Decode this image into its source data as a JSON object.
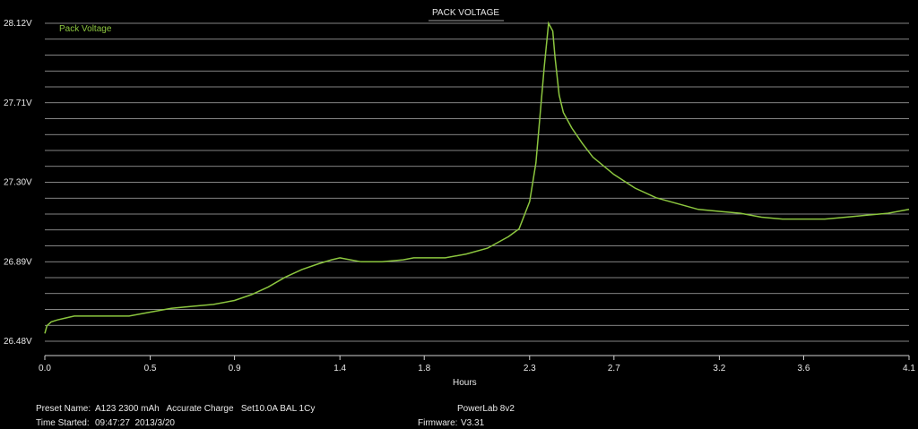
{
  "colors": {
    "background": "#000000",
    "grid": "#d0d0d0",
    "series": "#8cc63f",
    "text": "#e8e8e8"
  },
  "chart_data": {
    "type": "line",
    "title": "PACK VOLTAGE",
    "xlabel": "Hours",
    "ylabel": "",
    "xlim": [
      0,
      4.1
    ],
    "ylim": [
      26.48,
      28.12
    ],
    "x_ticks": [
      "0.0",
      "0.5",
      "0.9",
      "1.4",
      "1.8",
      "2.3",
      "2.7",
      "3.2",
      "3.6",
      "4.1"
    ],
    "y_ticks": [
      "28.12V",
      "27.71V",
      "27.30V",
      "26.89V",
      "26.48V"
    ],
    "grid": true,
    "legend": "top-left",
    "series": [
      {
        "name": "Pack Voltage",
        "points": [
          [
            0.0,
            26.52
          ],
          [
            0.01,
            26.56
          ],
          [
            0.03,
            26.58
          ],
          [
            0.06,
            26.59
          ],
          [
            0.1,
            26.6
          ],
          [
            0.14,
            26.61
          ],
          [
            0.2,
            26.61
          ],
          [
            0.3,
            26.61
          ],
          [
            0.4,
            26.61
          ],
          [
            0.5,
            26.63
          ],
          [
            0.6,
            26.65
          ],
          [
            0.7,
            26.66
          ],
          [
            0.8,
            26.67
          ],
          [
            0.9,
            26.69
          ],
          [
            0.98,
            26.72
          ],
          [
            1.06,
            26.76
          ],
          [
            1.14,
            26.81
          ],
          [
            1.22,
            26.85
          ],
          [
            1.3,
            26.88
          ],
          [
            1.36,
            26.9
          ],
          [
            1.4,
            26.91
          ],
          [
            1.45,
            26.9
          ],
          [
            1.5,
            26.89
          ],
          [
            1.6,
            26.89
          ],
          [
            1.7,
            26.9
          ],
          [
            1.75,
            26.91
          ],
          [
            1.8,
            26.91
          ],
          [
            1.9,
            26.91
          ],
          [
            2.0,
            26.93
          ],
          [
            2.1,
            26.96
          ],
          [
            2.2,
            27.02
          ],
          [
            2.25,
            27.06
          ],
          [
            2.3,
            27.2
          ],
          [
            2.33,
            27.4
          ],
          [
            2.35,
            27.65
          ],
          [
            2.37,
            27.9
          ],
          [
            2.39,
            28.12
          ],
          [
            2.41,
            28.08
          ],
          [
            2.42,
            27.95
          ],
          [
            2.44,
            27.75
          ],
          [
            2.46,
            27.66
          ],
          [
            2.5,
            27.58
          ],
          [
            2.55,
            27.5
          ],
          [
            2.6,
            27.43
          ],
          [
            2.7,
            27.34
          ],
          [
            2.8,
            27.27
          ],
          [
            2.9,
            27.22
          ],
          [
            3.0,
            27.19
          ],
          [
            3.1,
            27.16
          ],
          [
            3.2,
            27.15
          ],
          [
            3.3,
            27.14
          ],
          [
            3.4,
            27.12
          ],
          [
            3.5,
            27.11
          ],
          [
            3.6,
            27.11
          ],
          [
            3.7,
            27.11
          ],
          [
            3.8,
            27.12
          ],
          [
            3.9,
            27.13
          ],
          [
            4.0,
            27.14
          ],
          [
            4.1,
            27.16
          ]
        ]
      }
    ]
  },
  "footer": {
    "preset_label": "Preset Name:",
    "preset_value": "A123 2300 mAh   Accurate Charge   Set10.0A BAL 1Cy",
    "time_label": "Time Started:",
    "time_value": "09:47:27  2013/3/20",
    "device_name": "PowerLab 8v2",
    "firmware_label": "Firmware:",
    "firmware_value": "V3.31"
  }
}
